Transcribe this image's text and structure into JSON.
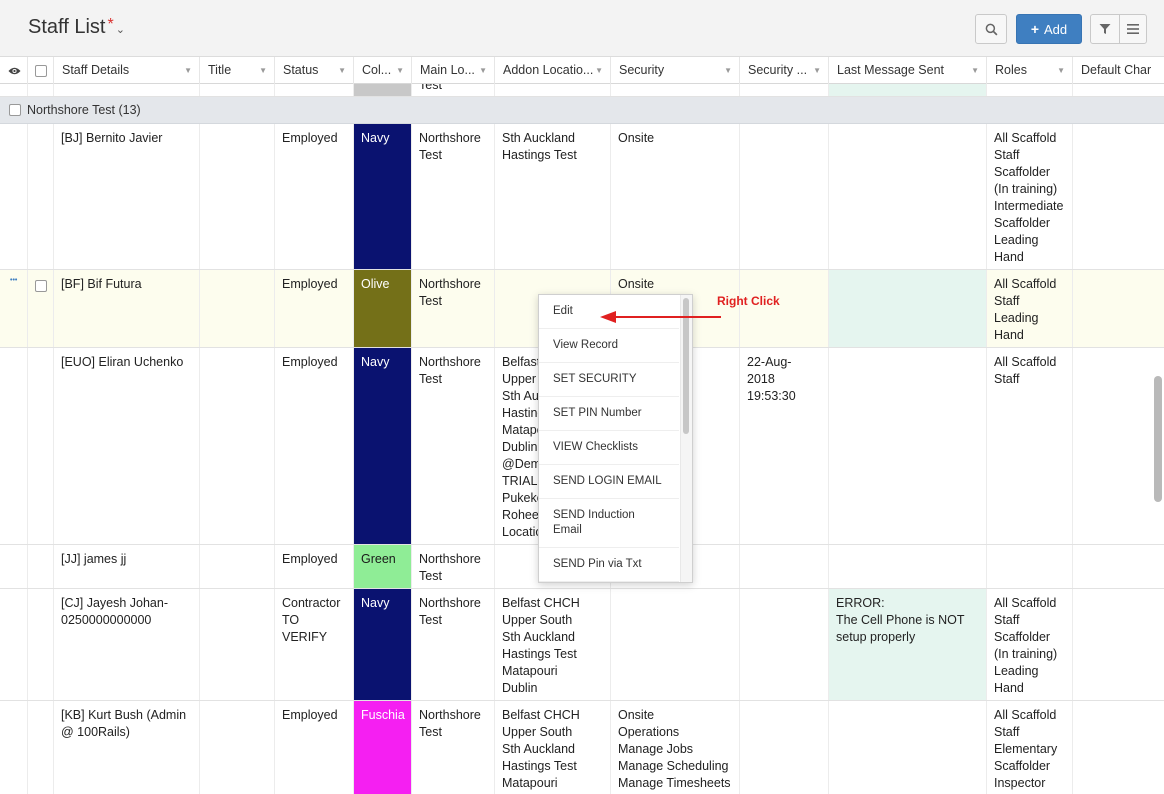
{
  "header": {
    "title": "Staff List",
    "required_mark": "*",
    "add_label": "Add",
    "icons": [
      "search-icon",
      "plus-icon",
      "filter-icon",
      "menu-icon",
      "chevron-down-icon"
    ]
  },
  "columns": [
    {
      "label": ""
    },
    {
      "label": ""
    },
    {
      "label": "Staff Details"
    },
    {
      "label": "Title"
    },
    {
      "label": "Status"
    },
    {
      "label": "Col..."
    },
    {
      "label": "Main Lo..."
    },
    {
      "label": "Addon Locatio..."
    },
    {
      "label": "Security"
    },
    {
      "label": "Security ..."
    },
    {
      "label": "Last Message Sent"
    },
    {
      "label": "Roles"
    },
    {
      "label": "Default Char"
    }
  ],
  "top_partial": {
    "main": "Test"
  },
  "group": {
    "label": "Northshore Test (13)"
  },
  "rows": [
    {
      "staff": "[BJ] Bernito Javier",
      "title": "",
      "status": "Employed",
      "color_name": "Navy",
      "color_hex": "#0a1270",
      "main": "Northshore\nTest",
      "addon": "Sth Auckland\nHastings Test",
      "security": "Onsite",
      "security2": "",
      "message": "",
      "roles": "All Scaffold\nStaff\nScaffolder\n(In training)\nIntermediate\nScaffolder\nLeading\nHand"
    },
    {
      "staff": "[BF] Bif Futura",
      "title": "",
      "status": "Employed",
      "color_name": "Olive",
      "color_hex": "#747018",
      "main": "Northshore\nTest",
      "addon": "",
      "security": "Onsite",
      "security2": "",
      "message": "",
      "roles": "All Scaffold\nStaff\nLeading\nHand"
    },
    {
      "staff": "[EUO] Eliran Uchenko",
      "title": "",
      "status": "Employed",
      "color_name": "Navy",
      "color_hex": "#0a1270",
      "main": "Northshore\nTest",
      "addon": "Belfast CHCH\nUpper South\nSth Auckland\nHastings Test\nMatapouri\nDublin\n@Demo\nTRIAL\nPukekohe\nRoheenga\nLocations",
      "security": "",
      "security2": "22-Aug-\n2018\n19:53:30",
      "message": "",
      "roles": "All Scaffold\nStaff"
    },
    {
      "staff": "[JJ] james jj",
      "title": "",
      "status": "Employed",
      "color_name": "Green",
      "color_hex": "#8fed96",
      "main": "Northshore\nTest",
      "addon": "",
      "security": "",
      "security2": "",
      "message": "",
      "roles": ""
    },
    {
      "staff": "[CJ] Jayesh Johan-\n0250000000000",
      "title": "",
      "status": "Contractor\nTO VERIFY",
      "color_name": "Navy",
      "color_hex": "#0a1270",
      "main": "Northshore\nTest",
      "addon": "Belfast CHCH\nUpper South\nSth Auckland\nHastings Test\nMatapouri\nDublin",
      "security": "",
      "security2": "",
      "message": "ERROR:\nThe Cell Phone is NOT\nsetup properly",
      "roles": "All Scaffold\nStaff\nScaffolder\n(In training)\nLeading\nHand"
    },
    {
      "staff": "[KB] Kurt Bush (Admin\n@ 100Rails)",
      "title": "",
      "status": "Employed",
      "color_name": "Fuschia",
      "color_hex": "#f51ff2",
      "main": "Northshore\nTest",
      "addon": "Belfast CHCH\nUpper South\nSth Auckland\nHastings Test\nMatapouri",
      "security": "Onsite\nOperations\nManage Jobs\nManage Scheduling\nManage Timesheets",
      "security2": "",
      "message": "",
      "roles": "All Scaffold\nStaff\nElementary\nScaffolder\nInspector"
    }
  ],
  "context_menu": {
    "items": [
      "Edit",
      "View Record",
      "SET SECURITY",
      "SET PIN Number",
      "VIEW Checklists",
      "SEND LOGIN EMAIL",
      "SEND Induction\nEmail",
      "SEND Pin via Txt"
    ]
  },
  "annotation": {
    "text": "Right Click",
    "color": "#e02020"
  },
  "colors": {
    "accent": "#3f7fc1",
    "message_bg": "#e5f5ef",
    "group_bg": "#e4e7eb"
  }
}
